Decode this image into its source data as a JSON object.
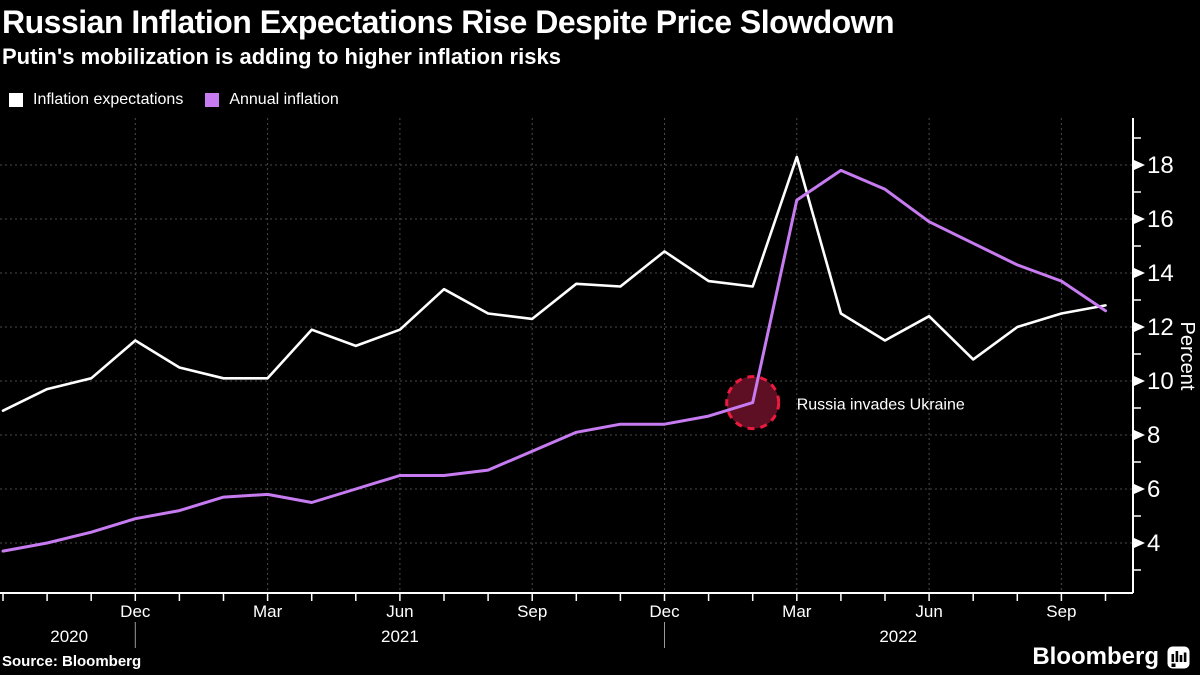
{
  "header": {
    "title": "Russian Inflation Expectations Rise Despite Price Slowdown",
    "subtitle": "Putin's mobilization is adding to higher inflation risks"
  },
  "chart_data": {
    "type": "line",
    "title": "Russian Inflation Expectations Rise Despite Price Slowdown",
    "subtitle": "Putin's mobilization is adding to higher inflation risks",
    "ylabel": "Percent",
    "ylim": [
      2,
      20
    ],
    "grid": true,
    "legend_position": "top-left",
    "y_major_ticks": [
      4,
      6,
      8,
      10,
      12,
      14,
      16,
      18
    ],
    "y_minor_ticks": [
      3,
      5,
      7,
      9,
      11,
      13,
      15,
      17,
      19
    ],
    "categories": [
      "Sep 2020",
      "Oct 2020",
      "Nov 2020",
      "Dec 2020",
      "Jan 2021",
      "Feb 2021",
      "Mar 2021",
      "Apr 2021",
      "May 2021",
      "Jun 2021",
      "Jul 2021",
      "Aug 2021",
      "Sep 2021",
      "Oct 2021",
      "Nov 2021",
      "Dec 2021",
      "Jan 2022",
      "Feb 2022",
      "Mar 2022",
      "Apr 2022",
      "May 2022",
      "Jun 2022",
      "Jul 2022",
      "Aug 2022",
      "Sep 2022",
      "Oct 2022"
    ],
    "x_quarter_ticks": [
      {
        "index": 3,
        "label": "Dec"
      },
      {
        "index": 6,
        "label": "Mar"
      },
      {
        "index": 9,
        "label": "Jun"
      },
      {
        "index": 12,
        "label": "Sep"
      },
      {
        "index": 15,
        "label": "Dec"
      },
      {
        "index": 18,
        "label": "Mar"
      },
      {
        "index": 21,
        "label": "Jun"
      },
      {
        "index": 24,
        "label": "Sep"
      }
    ],
    "x_year_labels": [
      {
        "label": "2020",
        "index": 1.5
      },
      {
        "label": "2021",
        "index": 9
      },
      {
        "label": "2022",
        "index": 20.3
      }
    ],
    "year_divider_indices": [
      3,
      15
    ],
    "series": [
      {
        "name": "Inflation expectations",
        "color": "#ffffff",
        "values": [
          8.9,
          9.7,
          10.1,
          11.5,
          10.5,
          10.1,
          10.1,
          11.9,
          11.3,
          11.9,
          13.4,
          12.5,
          12.3,
          13.6,
          13.5,
          14.8,
          13.7,
          13.5,
          18.3,
          12.5,
          11.5,
          12.4,
          10.8,
          12.0,
          12.5,
          12.8
        ]
      },
      {
        "name": "Annual inflation",
        "color": "#c67bf0",
        "values": [
          3.7,
          4.0,
          4.4,
          4.9,
          5.2,
          5.7,
          5.8,
          5.5,
          6.0,
          6.5,
          6.5,
          6.7,
          7.4,
          8.1,
          8.4,
          8.4,
          8.7,
          9.2,
          16.7,
          17.8,
          17.1,
          15.9,
          15.1,
          14.3,
          13.7,
          12.6
        ]
      }
    ],
    "annotation": {
      "text": "Russia invades Ukraine",
      "category": "Feb 2022",
      "series": "Annual inflation",
      "value": 9.2,
      "circle_fill": "#5e0f24",
      "circle_stroke": "#ee1a3e"
    },
    "colors": {
      "background": "#000000",
      "axis": "#ffffff",
      "gridline": "#4a4a4a",
      "text": "#ffffff"
    }
  },
  "footer": {
    "source": "Source: Bloomberg",
    "brand": "Bloomberg"
  }
}
